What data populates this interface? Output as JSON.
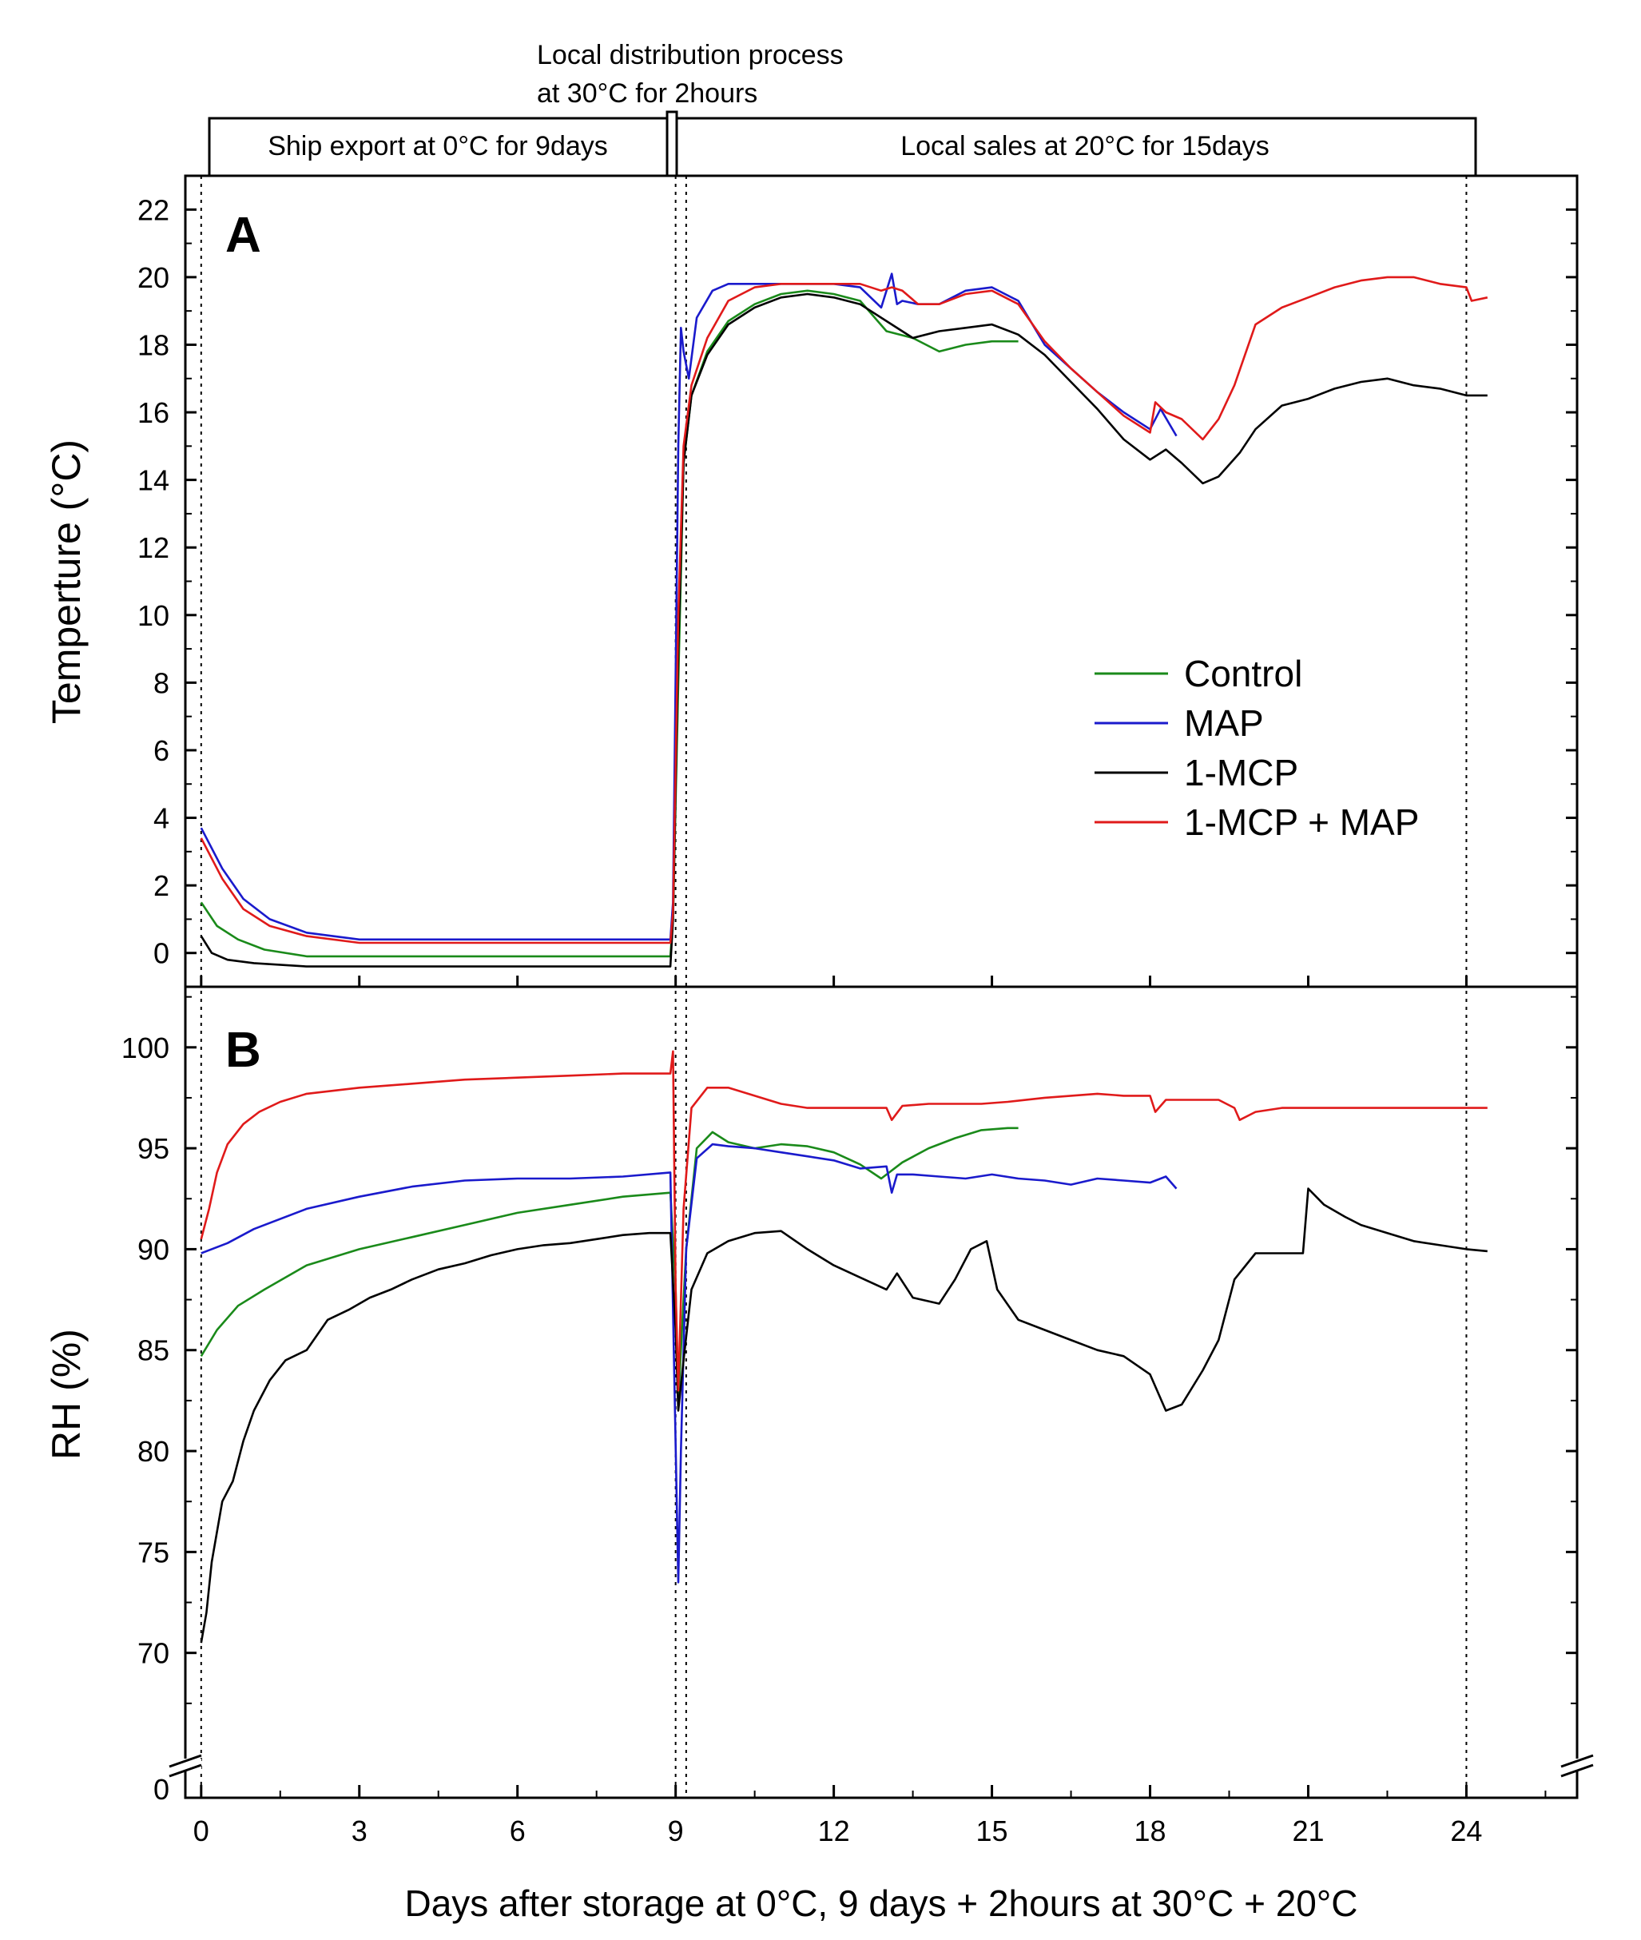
{
  "colors": {
    "control": "#1a8a1a",
    "map": "#1a1acc",
    "mcp": "#000000",
    "mcp_map": "#e01a1a",
    "axis": "#000000"
  },
  "phases": {
    "ship": "Ship export at 0°C for 9days",
    "local_dist_line1": "Local distribution process",
    "local_dist_line2": "at 30°C for 2hours",
    "sales": "Local sales at 20°C for 15days"
  },
  "chart_data": [
    {
      "type": "line",
      "panel": "A",
      "xlabel": "Days after storage at 0°C, 9 days + 2hours at 30°C + 20°C",
      "ylabel": "Temperture (°C)",
      "xlim": [
        -0.3,
        26.1
      ],
      "ylim": [
        -1,
        23
      ],
      "xticks": [
        0,
        3,
        6,
        9,
        12,
        15,
        18,
        21,
        24
      ],
      "yticks": [
        0,
        2,
        4,
        6,
        8,
        10,
        12,
        14,
        16,
        18,
        20,
        22
      ],
      "legend": [
        "Control",
        "MAP",
        "1-MCP",
        "1-MCP + MAP"
      ],
      "legend_position": "center-right",
      "series": [
        {
          "name": "Control",
          "key": "control",
          "x": [
            0,
            0.3,
            0.7,
            1.2,
            2,
            3,
            5,
            7,
            8.9,
            8.95,
            9.05,
            9.15,
            9.3,
            9.6,
            10,
            10.5,
            11,
            11.5,
            12,
            12.5,
            13,
            13.5,
            14,
            14.5,
            15,
            15.5
          ],
          "y": [
            1.5,
            0.8,
            0.4,
            0.1,
            -0.1,
            -0.1,
            -0.1,
            -0.1,
            -0.1,
            1.0,
            8.0,
            14.5,
            16.5,
            17.8,
            18.7,
            19.2,
            19.5,
            19.6,
            19.5,
            19.3,
            18.4,
            18.2,
            17.8,
            18.0,
            18.1,
            18.1
          ]
        },
        {
          "name": "MAP",
          "key": "map",
          "x": [
            0,
            0.4,
            0.8,
            1.3,
            2,
            3,
            5,
            7,
            8.9,
            8.95,
            9.05,
            9.1,
            9.15,
            9.25,
            9.4,
            9.7,
            10,
            10.5,
            11,
            11.5,
            12,
            12.5,
            12.9,
            13.1,
            13.2,
            13.3,
            13.6,
            14,
            14.5,
            15,
            15.5,
            16,
            16.5,
            17,
            17.5,
            18,
            18.2,
            18.5
          ],
          "y": [
            3.7,
            2.5,
            1.6,
            1.0,
            0.6,
            0.4,
            0.4,
            0.4,
            0.4,
            1.5,
            15.0,
            18.5,
            17.8,
            17.0,
            18.8,
            19.6,
            19.8,
            19.8,
            19.8,
            19.8,
            19.8,
            19.7,
            19.1,
            20.1,
            19.2,
            19.3,
            19.2,
            19.2,
            19.6,
            19.7,
            19.3,
            18.0,
            17.3,
            16.6,
            16.0,
            15.5,
            16.1,
            15.3
          ]
        },
        {
          "name": "1-MCP",
          "key": "mcp",
          "x": [
            0,
            0.2,
            0.5,
            1,
            2,
            3,
            5,
            7,
            8.9,
            8.95,
            9.05,
            9.15,
            9.3,
            9.6,
            10,
            10.5,
            11,
            11.5,
            12,
            12.5,
            13,
            13.5,
            14,
            14.5,
            15,
            15.5,
            16,
            16.5,
            17,
            17.5,
            18,
            18.3,
            18.6,
            19,
            19.3,
            19.7,
            20,
            20.5,
            21,
            21.5,
            22,
            22.5,
            23,
            23.5,
            24,
            24.4
          ],
          "y": [
            0.5,
            0.0,
            -0.2,
            -0.3,
            -0.4,
            -0.4,
            -0.4,
            -0.4,
            -0.4,
            1.0,
            9.0,
            14.5,
            16.5,
            17.7,
            18.6,
            19.1,
            19.4,
            19.5,
            19.4,
            19.2,
            18.7,
            18.2,
            18.4,
            18.5,
            18.6,
            18.3,
            17.7,
            16.9,
            16.1,
            15.2,
            14.6,
            14.9,
            14.5,
            13.9,
            14.1,
            14.8,
            15.5,
            16.2,
            16.4,
            16.7,
            16.9,
            17.0,
            16.8,
            16.7,
            16.5,
            16.5
          ]
        },
        {
          "name": "1-MCP + MAP",
          "key": "mcp_map",
          "x": [
            0,
            0.4,
            0.8,
            1.3,
            2,
            3,
            5,
            7,
            8.9,
            8.95,
            9.05,
            9.15,
            9.3,
            9.6,
            10,
            10.5,
            11,
            11.5,
            12,
            12.5,
            12.9,
            13.1,
            13.3,
            13.6,
            14,
            14.5,
            15,
            15.5,
            16,
            16.5,
            17,
            17.5,
            18,
            18.1,
            18.3,
            18.6,
            19,
            19.3,
            19.6,
            20,
            20.5,
            21,
            21.5,
            22,
            22.5,
            23,
            23.5,
            24,
            24.1,
            24.4
          ],
          "y": [
            3.4,
            2.2,
            1.3,
            0.8,
            0.5,
            0.3,
            0.3,
            0.3,
            0.3,
            1.2,
            10.0,
            15.0,
            16.8,
            18.2,
            19.3,
            19.7,
            19.8,
            19.8,
            19.8,
            19.8,
            19.6,
            19.7,
            19.6,
            19.2,
            19.2,
            19.5,
            19.6,
            19.2,
            18.1,
            17.3,
            16.6,
            15.9,
            15.4,
            16.3,
            16.0,
            15.8,
            15.2,
            15.8,
            16.8,
            18.6,
            19.1,
            19.4,
            19.7,
            19.9,
            20.0,
            20.0,
            19.8,
            19.7,
            19.3,
            19.4
          ]
        }
      ]
    },
    {
      "type": "line",
      "panel": "B",
      "xlabel": "Days after storage at 0°C, 9 days + 2hours at 30°C + 20°C",
      "ylabel": "RH (%)",
      "xlim": [
        -0.3,
        26.1
      ],
      "ylim": [
        65,
        103
      ],
      "yticks": [
        70,
        75,
        80,
        85,
        90,
        95,
        100
      ],
      "y_axis_break": "0",
      "series": [
        {
          "name": "Control",
          "key": "control",
          "x": [
            0,
            0.3,
            0.7,
            1.2,
            2,
            3,
            4,
            5,
            6,
            7,
            8,
            8.9,
            9.0,
            9.05,
            9.2,
            9.4,
            9.7,
            10,
            10.5,
            11,
            11.5,
            12,
            12.5,
            12.9,
            13.3,
            13.8,
            14.3,
            14.8,
            15.3,
            15.5
          ],
          "y": [
            84.7,
            86.0,
            87.2,
            88.0,
            89.2,
            90.0,
            90.6,
            91.2,
            91.8,
            92.2,
            92.6,
            92.8,
            88.0,
            82.5,
            90.0,
            95.0,
            95.8,
            95.3,
            95.0,
            95.2,
            95.1,
            94.8,
            94.2,
            93.5,
            94.3,
            95.0,
            95.5,
            95.9,
            96.0,
            96.0
          ]
        },
        {
          "name": "MAP",
          "key": "map",
          "x": [
            0,
            0.5,
            1,
            2,
            3,
            4,
            5,
            6,
            7,
            8,
            8.9,
            8.95,
            9.05,
            9.1,
            9.2,
            9.4,
            9.7,
            10,
            10.5,
            11,
            11.5,
            12,
            12.5,
            13,
            13.1,
            13.2,
            13.5,
            14,
            14.5,
            15,
            15.5,
            16,
            16.5,
            17,
            17.5,
            18,
            18.3,
            18.5
          ],
          "y": [
            89.8,
            90.3,
            91.0,
            92.0,
            92.6,
            93.1,
            93.4,
            93.5,
            93.5,
            93.6,
            93.8,
            87.0,
            73.5,
            80.0,
            90.0,
            94.5,
            95.2,
            95.1,
            95.0,
            94.8,
            94.6,
            94.4,
            94.0,
            94.1,
            92.8,
            93.7,
            93.7,
            93.6,
            93.5,
            93.7,
            93.5,
            93.4,
            93.2,
            93.5,
            93.4,
            93.3,
            93.6,
            93.0
          ]
        },
        {
          "name": "1-MCP",
          "key": "mcp",
          "x": [
            0,
            0.1,
            0.2,
            0.4,
            0.6,
            0.8,
            1.0,
            1.3,
            1.6,
            2.0,
            2.4,
            2.8,
            3.2,
            3.6,
            4,
            4.5,
            5,
            5.5,
            6,
            6.5,
            7,
            7.5,
            8,
            8.5,
            8.9,
            9.0,
            9.05,
            9.15,
            9.3,
            9.6,
            10,
            10.5,
            11,
            11.5,
            12,
            12.5,
            13,
            13.2,
            13.5,
            14,
            14.3,
            14.6,
            14.9,
            15.1,
            15.5,
            16,
            16.5,
            17,
            17.5,
            18,
            18.3,
            18.6,
            19,
            19.3,
            19.6,
            20,
            20.5,
            20.9,
            21.0,
            21.3,
            21.7,
            22,
            22.5,
            23,
            23.5,
            24,
            24.4
          ],
          "y": [
            70.5,
            72.0,
            74.5,
            77.5,
            78.5,
            80.5,
            82.0,
            83.5,
            84.5,
            85.0,
            86.5,
            87.0,
            87.6,
            88.0,
            88.5,
            89.0,
            89.3,
            89.7,
            90.0,
            90.2,
            90.3,
            90.5,
            90.7,
            90.8,
            90.8,
            86.0,
            82.0,
            84.5,
            88.0,
            89.8,
            90.4,
            90.8,
            90.9,
            90.0,
            89.2,
            88.6,
            88.0,
            88.8,
            87.6,
            87.3,
            88.5,
            90.0,
            90.4,
            88.0,
            86.5,
            86.0,
            85.5,
            85.0,
            84.7,
            83.8,
            82.0,
            82.3,
            84.0,
            85.5,
            88.5,
            89.8,
            89.8,
            89.8,
            93.0,
            92.2,
            91.6,
            91.2,
            90.8,
            90.4,
            90.2,
            90.0,
            89.9
          ]
        },
        {
          "name": "1-MCP + MAP",
          "key": "mcp_map",
          "x": [
            0,
            0.15,
            0.3,
            0.5,
            0.8,
            1.1,
            1.5,
            2,
            3,
            4,
            5,
            6,
            7,
            8,
            8.9,
            8.95,
            9.0,
            9.05,
            9.15,
            9.3,
            9.6,
            10,
            10.5,
            11,
            11.5,
            12,
            12.5,
            13,
            13.1,
            13.3,
            13.8,
            14.3,
            14.8,
            15.3,
            16,
            16.5,
            17,
            17.5,
            18,
            18.1,
            18.3,
            18.8,
            19.3,
            19.6,
            19.7,
            20,
            20.5,
            21,
            22,
            23,
            24,
            24.4
          ],
          "y": [
            90.5,
            92.0,
            93.8,
            95.2,
            96.2,
            96.8,
            97.3,
            97.7,
            98.0,
            98.2,
            98.4,
            98.5,
            98.6,
            98.7,
            98.7,
            99.8,
            88.0,
            83.0,
            92.0,
            97.0,
            98.0,
            98.0,
            97.6,
            97.2,
            97.0,
            97.0,
            97.0,
            97.0,
            96.4,
            97.1,
            97.2,
            97.2,
            97.2,
            97.3,
            97.5,
            97.6,
            97.7,
            97.6,
            97.6,
            96.8,
            97.4,
            97.4,
            97.4,
            97.0,
            96.4,
            96.8,
            97.0,
            97.0,
            97.0,
            97.0,
            97.0,
            97.0
          ]
        }
      ]
    }
  ]
}
